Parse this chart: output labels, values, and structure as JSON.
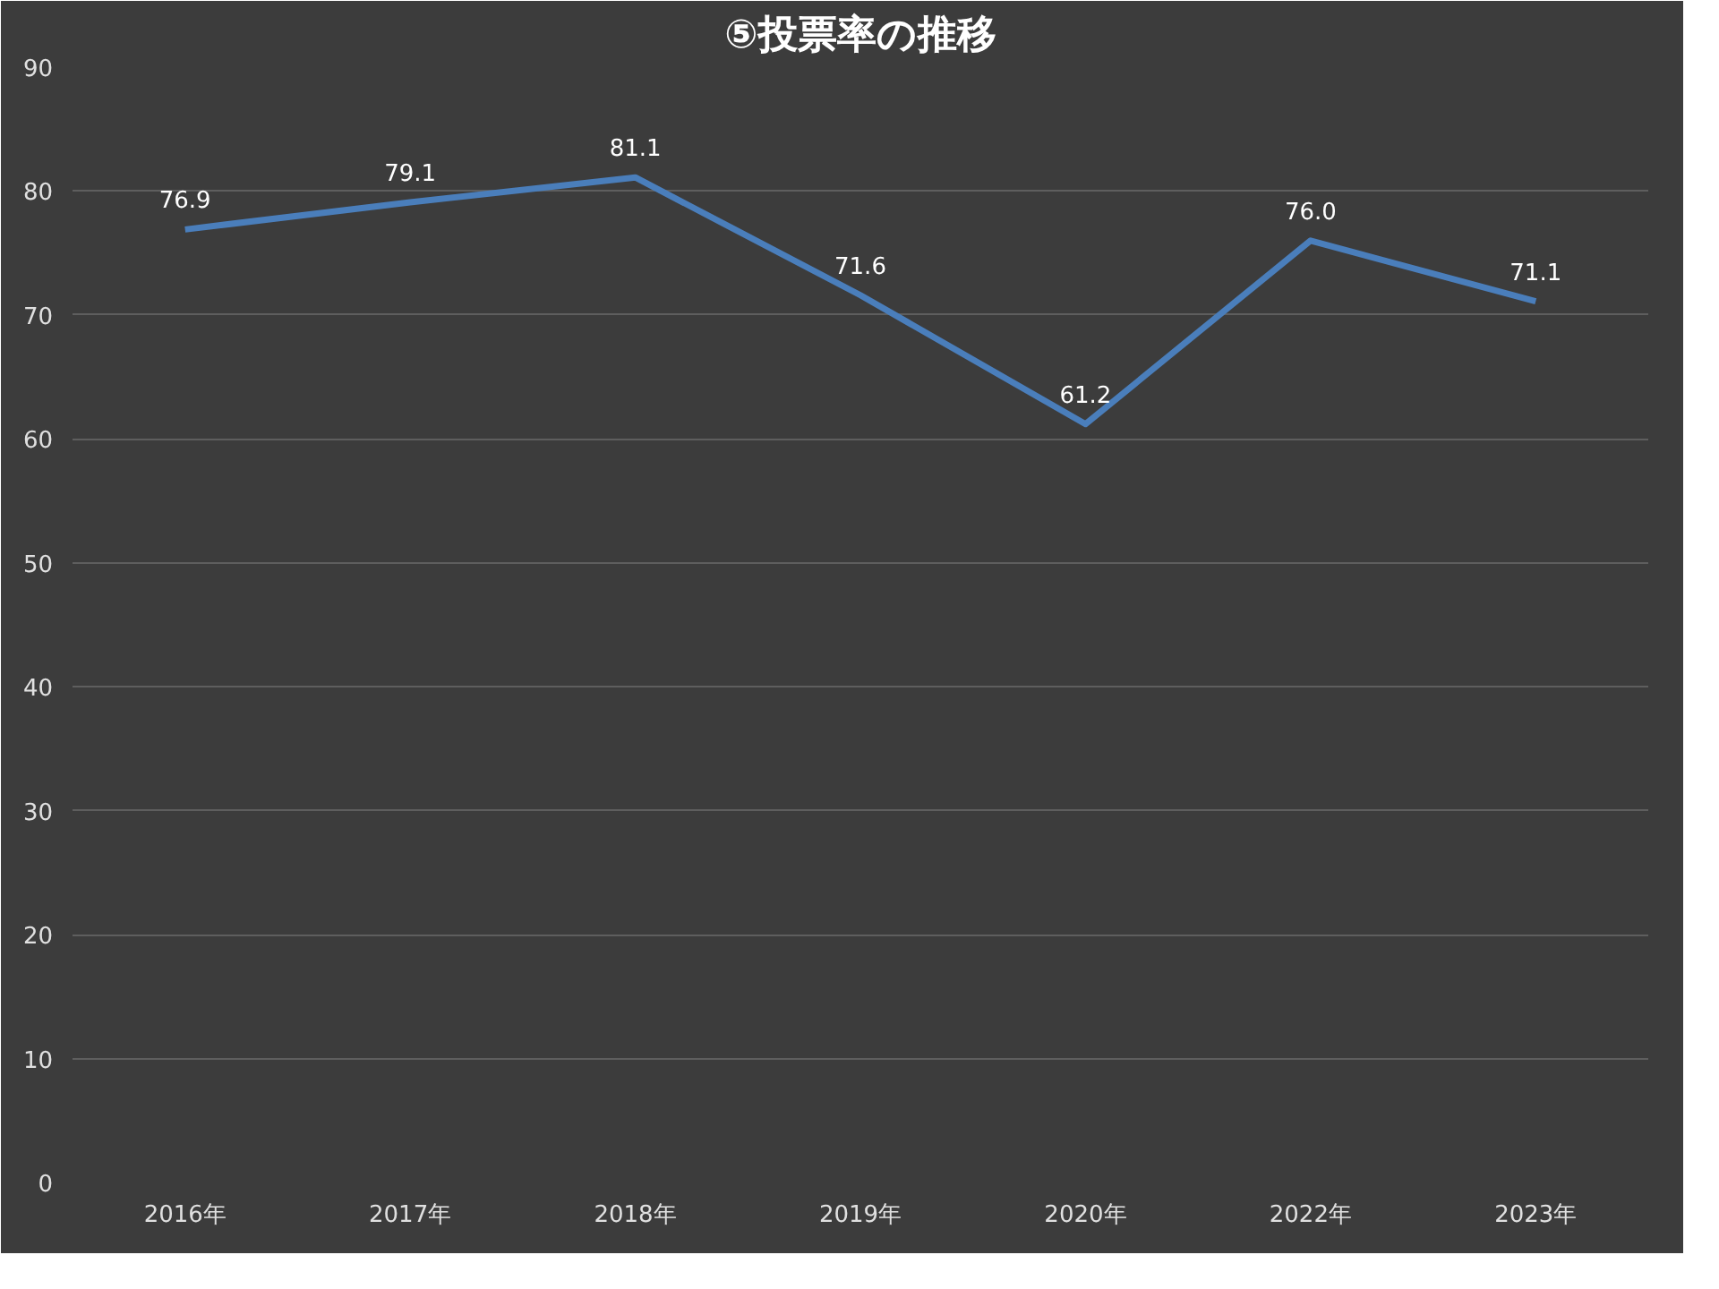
{
  "chart_data": {
    "type": "line",
    "title": "⑤投票率の推移",
    "categories": [
      "2016年",
      "2017年",
      "2018年",
      "2019年",
      "2020年",
      "2022年",
      "2023年"
    ],
    "series": [
      {
        "color": "#4a7ebb",
        "values": [
          76.9,
          79.1,
          81.1,
          71.6,
          61.2,
          76.0,
          71.1
        ],
        "value_labels": [
          "76.9",
          "79.1",
          "81.1",
          "71.6",
          "61.2",
          "76.0",
          "71.1"
        ]
      }
    ],
    "ylim": [
      0,
      90
    ],
    "yticks": [
      0,
      10,
      20,
      30,
      40,
      50,
      60,
      70,
      80,
      90
    ],
    "grid": "y",
    "line_style": "solid"
  }
}
